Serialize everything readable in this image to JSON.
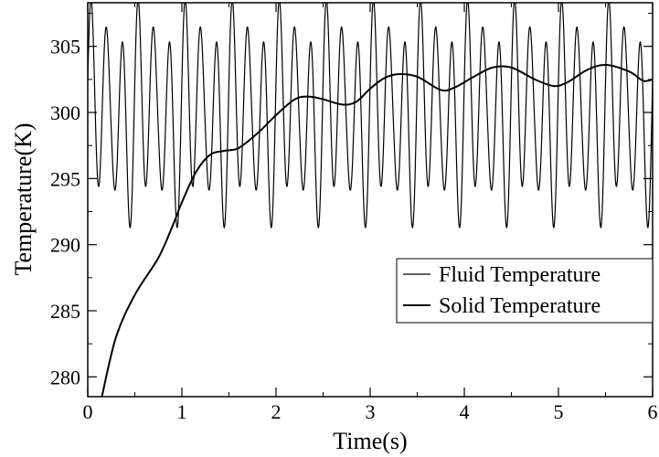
{
  "chart_data": {
    "type": "line",
    "title": "",
    "xlabel": "Time(s)",
    "ylabel": "Temperature(K)",
    "xlim": [
      0,
      6
    ],
    "ylim": [
      278.5,
      308.3
    ],
    "x_ticks": [
      0,
      1,
      2,
      3,
      4,
      5,
      6
    ],
    "x_tick_labels": [
      "0",
      "1",
      "2",
      "3",
      "4",
      "5",
      "6"
    ],
    "y_ticks": [
      280,
      285,
      290,
      295,
      300,
      305
    ],
    "y_tick_labels": [
      "280",
      "285",
      "290",
      "295",
      "300",
      "305"
    ],
    "grid": false,
    "legend_position": "right",
    "series": [
      {
        "name": "Fluid Temperature",
        "style": "thin",
        "oscillation": {
          "mean": 300,
          "max": 308,
          "min": 292,
          "beat_period_s": 0.5,
          "peaks_per_beat": 3
        }
      },
      {
        "name": "Solid Temperature",
        "style": "thick",
        "x": [
          0.15,
          0.3,
          0.5,
          0.75,
          0.9,
          1.0,
          1.15,
          1.3,
          1.45,
          1.6,
          1.8,
          2.0,
          2.2,
          2.35,
          2.5,
          2.7,
          2.85,
          3.0,
          3.15,
          3.3,
          3.5,
          3.75,
          3.9,
          4.1,
          4.3,
          4.5,
          4.75,
          4.95,
          5.1,
          5.3,
          5.5,
          5.75,
          5.9,
          6.0
        ],
        "y": [
          278.5,
          283.0,
          286.2,
          289.0,
          291.4,
          293.2,
          295.5,
          296.8,
          297.1,
          297.3,
          298.4,
          299.8,
          301.0,
          301.2,
          301.0,
          300.6,
          300.8,
          301.8,
          302.6,
          302.9,
          302.7,
          301.7,
          301.9,
          302.7,
          303.4,
          303.4,
          302.5,
          302.0,
          302.3,
          303.2,
          303.6,
          303.1,
          302.4,
          302.5
        ]
      }
    ],
    "colors": {
      "line": "#000000",
      "axis": "#000000",
      "background": "#ffffff"
    }
  }
}
